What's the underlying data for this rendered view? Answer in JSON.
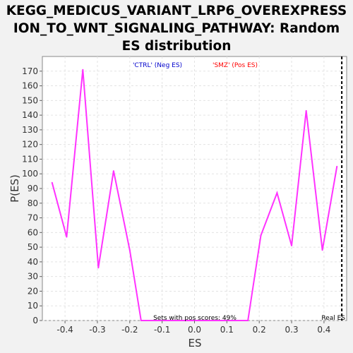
{
  "chart_data": {
    "type": "line",
    "title_lines": [
      "KEGG_MEDICUS_VARIANT_LRP6_OVEREXPRESS",
      "ION_TO_WNT_SIGNALING_PATHWAY: Random",
      "ES distribution"
    ],
    "xlabel": "ES",
    "ylabel": "P(ES)",
    "xlim": [
      -0.47,
      0.47
    ],
    "ylim": [
      0,
      180
    ],
    "x_ticks": [
      -0.4,
      -0.3,
      -0.2,
      -0.1,
      0.0,
      0.1,
      0.2,
      0.3,
      0.4
    ],
    "x_tick_labels": [
      "-0.4",
      "-0.3",
      "-0.2",
      "-0.1",
      "0.0",
      "0.1",
      "0.2",
      "0.3",
      "0.4"
    ],
    "y_ticks": [
      0,
      10,
      20,
      30,
      40,
      50,
      60,
      70,
      80,
      90,
      100,
      110,
      120,
      130,
      140,
      150,
      160,
      170
    ],
    "y_tick_labels": [
      "0",
      "10",
      "20",
      "30",
      "40",
      "50",
      "60",
      "70",
      "80",
      "90",
      "100",
      "110",
      "120",
      "130",
      "140",
      "150",
      "160",
      "170"
    ],
    "grid": true,
    "series": [
      {
        "color": "#ff33ff",
        "x": [
          -0.44,
          -0.395,
          -0.345,
          -0.297,
          -0.25,
          -0.2,
          -0.165,
          -0.12,
          -0.08,
          0.0,
          0.08,
          0.12,
          0.165,
          0.205,
          0.255,
          0.3,
          0.345,
          0.395,
          0.44
        ],
        "y": [
          94,
          57,
          171,
          36,
          102,
          48,
          0,
          0,
          0,
          0,
          0,
          0,
          0,
          58,
          87,
          51,
          143,
          48,
          105
        ]
      }
    ],
    "legend": [
      {
        "label": "'CTRL' (Neg ES)",
        "color": "#0000cc"
      },
      {
        "label": "'SMZ' (Pos ES)",
        "color": "#ff0000"
      }
    ],
    "annotation": "Sets with pos scores: 49%",
    "real_es": {
      "x": 0.455,
      "label": "Real ES"
    }
  }
}
